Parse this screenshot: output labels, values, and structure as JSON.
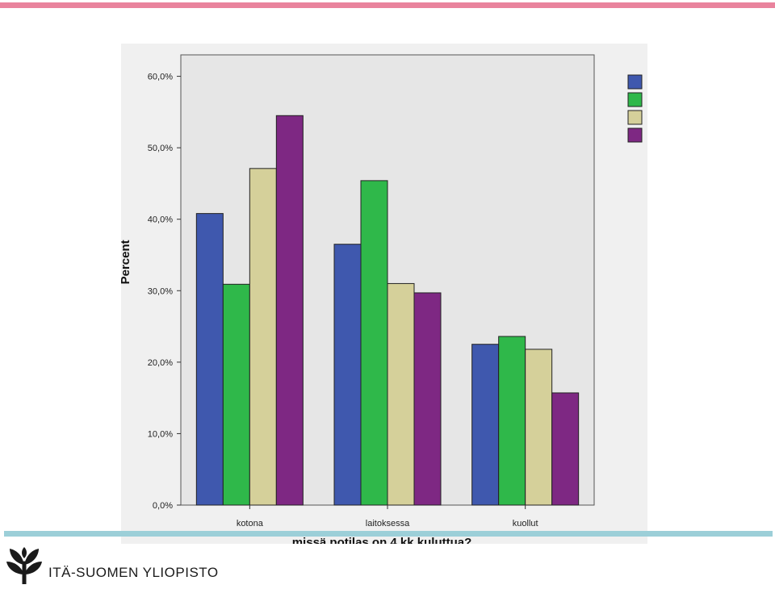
{
  "colors": {
    "top_bar": "#e9839d",
    "bottom_line": "#9ccfd8",
    "plot_bg": "#e6e6e6",
    "logo": "#1a1a1a"
  },
  "footer": {
    "university": "ITÄ-SUOMEN YLIOPISTO",
    "logo_icon": "university-sprout-logo-icon"
  },
  "chart_data": {
    "type": "bar",
    "categories": [
      "kotona",
      "laitoksessa",
      "kuollut"
    ],
    "series": [
      {
        "values": [
          40.8,
          36.5,
          22.5
        ],
        "color": "#3f58ae"
      },
      {
        "values": [
          30.9,
          45.4,
          23.6
        ],
        "color": "#2fb84a"
      },
      {
        "values": [
          47.1,
          31.0,
          21.8
        ],
        "color": "#d5d09a"
      },
      {
        "values": [
          54.5,
          29.7,
          15.7
        ],
        "color": "#7e2883"
      }
    ],
    "yticks": [
      "0,0%",
      "10,0%",
      "20,0%",
      "30,0%",
      "40,0%",
      "50,0%",
      "60,0%"
    ],
    "ylim": [
      0,
      63
    ],
    "xlabel": "missä potilas on 4 kk kuluttua?",
    "ylabel": "Percent",
    "grid": false,
    "legend_position": "top-right"
  }
}
